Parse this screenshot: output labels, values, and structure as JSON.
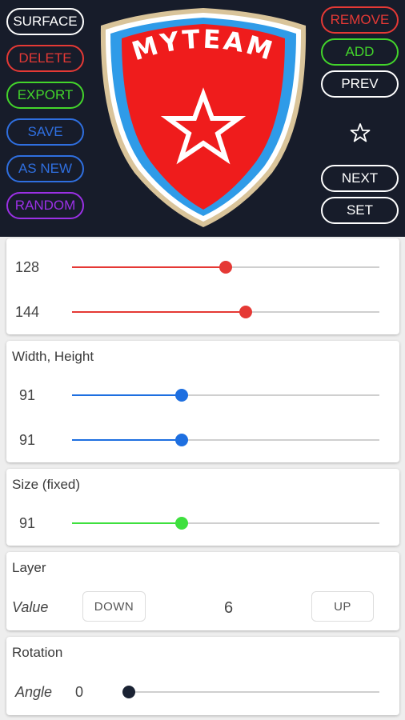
{
  "toolbar": {
    "left_buttons": [
      {
        "label": "SURFACE",
        "color": "#ffffff"
      },
      {
        "label": "DELETE",
        "color": "#e53935"
      },
      {
        "label": "EXPORT",
        "color": "#43d52b"
      },
      {
        "label": "SAVE",
        "color": "#2f6fe0"
      },
      {
        "label": "AS NEW",
        "color": "#2f6fe0"
      },
      {
        "label": "RANDOM",
        "color": "#9b30e6"
      }
    ],
    "right_buttons": [
      {
        "label": "REMOVE",
        "color": "#e53935"
      },
      {
        "label": "ADD",
        "color": "#43d52b"
      },
      {
        "label": "PREV",
        "color": "#ffffff"
      },
      {
        "label": "NEXT",
        "color": "#ffffff"
      },
      {
        "label": "SET",
        "color": "#ffffff"
      }
    ],
    "star_icon": "star-outline-icon"
  },
  "crest": {
    "text": "MYTEAM",
    "shield_color": "#ef1c1c",
    "stripe_color": "#2f9be8",
    "border_color": "#d9c49a"
  },
  "color_card": {
    "rows": [
      {
        "value": "128",
        "fraction": 0.5
      },
      {
        "value": "144",
        "fraction": 0.565
      }
    ],
    "accent": "#e53935"
  },
  "size_card": {
    "title": "Width, Height",
    "rows": [
      {
        "value": "91",
        "fraction": 0.357
      },
      {
        "value": "91",
        "fraction": 0.357
      }
    ],
    "accent": "#1e6fe0"
  },
  "fixed_card": {
    "title": "Size (fixed)",
    "row": {
      "value": "91",
      "fraction": 0.357
    },
    "accent": "#3ee03e"
  },
  "layer_card": {
    "title": "Layer",
    "label": "Value",
    "down_label": "DOWN",
    "value": "6",
    "up_label": "UP"
  },
  "rotation_card": {
    "title": "Rotation",
    "label": "Angle",
    "value": "0",
    "fraction": 0.0,
    "accent": "#1a2233"
  }
}
